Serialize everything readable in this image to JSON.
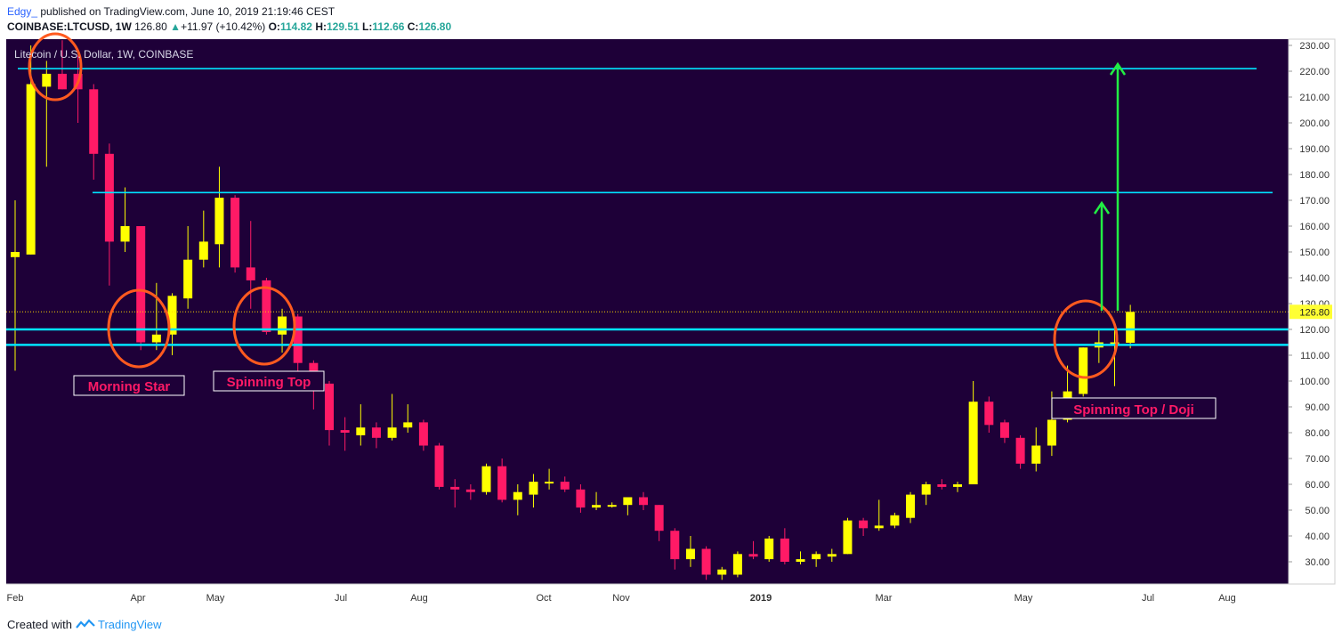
{
  "header": {
    "author": "Edgy_",
    "published": "published on TradingView.com, June 10, 2019 21:19:46 CEST",
    "symbol": "COINBASE:LTCUSD, 1W",
    "last": "126.80",
    "change": "+11.97 (+10.42%)",
    "o_label": "O:",
    "o": "114.82",
    "h_label": "H:",
    "h": "129.51",
    "l_label": "L:",
    "l": "112.66",
    "c_label": "C:",
    "c": "126.80"
  },
  "footer": {
    "created_with": "Created with",
    "brand": "TradingView"
  },
  "colors": {
    "background": "#1e0038",
    "up": "#ffff00",
    "down": "#ff1a66",
    "hline": "#00e5ff",
    "arrow": "#22ee44",
    "circle": "#ff5a1f",
    "label_text": "#ff1a66",
    "last_price_badge": "#ffff33"
  },
  "chart_data": {
    "type": "candlestick",
    "title": "Litecoin / U.S. Dollar, 1W, COINBASE",
    "interval": "1W",
    "ylim": [
      20,
      232
    ],
    "y_ticks": [
      30,
      40,
      50,
      60,
      70,
      80,
      90,
      100,
      110,
      120,
      130,
      140,
      150,
      160,
      170,
      180,
      190,
      200,
      210,
      220,
      230
    ],
    "x_ticks": [
      "Feb",
      "Apr",
      "May",
      "Jul",
      "Aug",
      "Oct",
      "Nov",
      "2019",
      "Mar",
      "May",
      "Jul",
      "Aug"
    ],
    "last_price": 126.8,
    "last_price_label": "126.80",
    "candles": [
      {
        "o": 148,
        "h": 170,
        "l": 104,
        "c": 150
      },
      {
        "o": 149,
        "h": 230,
        "l": 149,
        "c": 215
      },
      {
        "o": 214,
        "h": 224,
        "l": 183,
        "c": 219
      },
      {
        "o": 219,
        "h": 232,
        "l": 213,
        "c": 213
      },
      {
        "o": 219,
        "h": 226,
        "l": 200,
        "c": 213
      },
      {
        "o": 213,
        "h": 215,
        "l": 178,
        "c": 188
      },
      {
        "o": 188,
        "h": 192,
        "l": 137,
        "c": 154
      },
      {
        "o": 154,
        "h": 175,
        "l": 150,
        "c": 160
      },
      {
        "o": 160,
        "h": 160,
        "l": 112,
        "c": 115
      },
      {
        "o": 115,
        "h": 138,
        "l": 112,
        "c": 118
      },
      {
        "o": 118,
        "h": 134,
        "l": 110,
        "c": 133
      },
      {
        "o": 132,
        "h": 160,
        "l": 128,
        "c": 147
      },
      {
        "o": 147,
        "h": 166,
        "l": 144,
        "c": 154
      },
      {
        "o": 153,
        "h": 183,
        "l": 144,
        "c": 171
      },
      {
        "o": 171,
        "h": 172,
        "l": 142,
        "c": 144
      },
      {
        "o": 144,
        "h": 162,
        "l": 128,
        "c": 139
      },
      {
        "o": 139,
        "h": 140,
        "l": 118,
        "c": 119
      },
      {
        "o": 118,
        "h": 128,
        "l": 111,
        "c": 125
      },
      {
        "o": 125,
        "h": 126,
        "l": 103,
        "c": 107
      },
      {
        "o": 107,
        "h": 108,
        "l": 89,
        "c": 99
      },
      {
        "o": 99,
        "h": 100,
        "l": 75,
        "c": 81
      },
      {
        "o": 81,
        "h": 86,
        "l": 73,
        "c": 80
      },
      {
        "o": 79,
        "h": 91,
        "l": 75,
        "c": 82
      },
      {
        "o": 82,
        "h": 84,
        "l": 74,
        "c": 78
      },
      {
        "o": 78,
        "h": 95,
        "l": 77,
        "c": 82
      },
      {
        "o": 82,
        "h": 91,
        "l": 80,
        "c": 84
      },
      {
        "o": 84,
        "h": 85,
        "l": 73,
        "c": 75
      },
      {
        "o": 75,
        "h": 76,
        "l": 58,
        "c": 59
      },
      {
        "o": 59,
        "h": 62,
        "l": 51,
        "c": 58
      },
      {
        "o": 58,
        "h": 60,
        "l": 54,
        "c": 57
      },
      {
        "o": 57,
        "h": 68,
        "l": 56,
        "c": 67
      },
      {
        "o": 67,
        "h": 70,
        "l": 53,
        "c": 54
      },
      {
        "o": 54,
        "h": 60,
        "l": 48,
        "c": 57
      },
      {
        "o": 56,
        "h": 64,
        "l": 51,
        "c": 61
      },
      {
        "o": 61,
        "h": 66,
        "l": 58,
        "c": 61
      },
      {
        "o": 61,
        "h": 63,
        "l": 57,
        "c": 58
      },
      {
        "o": 58,
        "h": 60,
        "l": 49,
        "c": 51
      },
      {
        "o": 51,
        "h": 57,
        "l": 50,
        "c": 52
      },
      {
        "o": 52,
        "h": 53,
        "l": 51,
        "c": 52
      },
      {
        "o": 52,
        "h": 55,
        "l": 48,
        "c": 55
      },
      {
        "o": 55,
        "h": 57,
        "l": 50,
        "c": 52
      },
      {
        "o": 52,
        "h": 52,
        "l": 38,
        "c": 42
      },
      {
        "o": 42,
        "h": 43,
        "l": 27,
        "c": 31
      },
      {
        "o": 31,
        "h": 40,
        "l": 28,
        "c": 35
      },
      {
        "o": 35,
        "h": 36,
        "l": 23,
        "c": 25
      },
      {
        "o": 25,
        "h": 28,
        "l": 23,
        "c": 27
      },
      {
        "o": 25,
        "h": 34,
        "l": 24,
        "c": 33
      },
      {
        "o": 33,
        "h": 38,
        "l": 31,
        "c": 32
      },
      {
        "o": 31,
        "h": 40,
        "l": 30,
        "c": 39
      },
      {
        "o": 39,
        "h": 43,
        "l": 29,
        "c": 30
      },
      {
        "o": 30,
        "h": 34,
        "l": 29,
        "c": 31
      },
      {
        "o": 31,
        "h": 34,
        "l": 28,
        "c": 33
      },
      {
        "o": 32,
        "h": 35,
        "l": 30,
        "c": 33
      },
      {
        "o": 33,
        "h": 47,
        "l": 33,
        "c": 46
      },
      {
        "o": 46,
        "h": 47,
        "l": 40,
        "c": 43
      },
      {
        "o": 43,
        "h": 54,
        "l": 42,
        "c": 44
      },
      {
        "o": 44,
        "h": 49,
        "l": 43,
        "c": 48
      },
      {
        "o": 47,
        "h": 57,
        "l": 45,
        "c": 56
      },
      {
        "o": 56,
        "h": 61,
        "l": 52,
        "c": 60
      },
      {
        "o": 60,
        "h": 62,
        "l": 58,
        "c": 59
      },
      {
        "o": 59,
        "h": 61,
        "l": 57,
        "c": 60
      },
      {
        "o": 60,
        "h": 100,
        "l": 60,
        "c": 92
      },
      {
        "o": 92,
        "h": 94,
        "l": 80,
        "c": 83
      },
      {
        "o": 84,
        "h": 85,
        "l": 76,
        "c": 78
      },
      {
        "o": 78,
        "h": 79,
        "l": 66,
        "c": 68
      },
      {
        "o": 68,
        "h": 82,
        "l": 65,
        "c": 75
      },
      {
        "o": 75,
        "h": 96,
        "l": 71,
        "c": 85
      },
      {
        "o": 85,
        "h": 106,
        "l": 84,
        "c": 96
      },
      {
        "o": 95,
        "h": 113,
        "l": 94,
        "c": 113
      },
      {
        "o": 113,
        "h": 120,
        "l": 107,
        "c": 115
      },
      {
        "o": 115,
        "h": 120,
        "l": 98,
        "c": 115
      },
      {
        "o": 114.82,
        "h": 129.51,
        "l": 112.66,
        "c": 126.8
      }
    ],
    "horizontal_lines": [
      221,
      173,
      120,
      114
    ],
    "annotations": [
      {
        "text": "Morning Star"
      },
      {
        "text": "Spinning Top"
      },
      {
        "text": "Spinning Top / Doji"
      }
    ]
  }
}
